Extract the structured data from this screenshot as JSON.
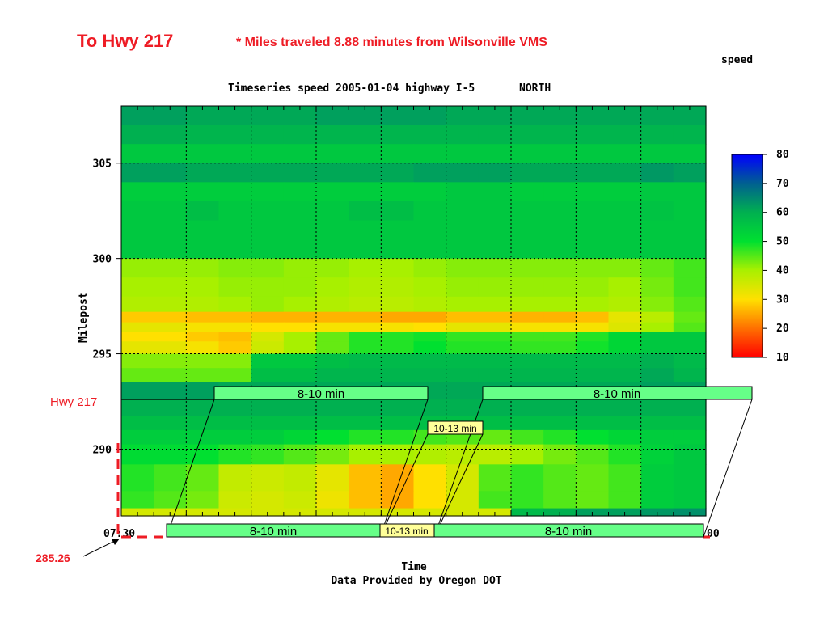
{
  "header": {
    "route_title": "To Hwy 217",
    "subtitle": "* Miles traveled 8.88 minutes from Wilsonville VMS",
    "legend_title": "speed"
  },
  "chart_data": {
    "type": "heatmap",
    "title": "Timeseries speed 2005-01-04 highway I-5       NORTH",
    "xlabel": "Time",
    "ylabel": "Milepost",
    "source": "Data Provided by Oregon DOT",
    "x_tick_labels": [
      "07:30",
      "00"
    ],
    "y_ticks": [
      305,
      300,
      295,
      290
    ],
    "ylim": [
      286.5,
      308
    ],
    "colorbar": {
      "min": 10,
      "max": 80,
      "ticks": [
        80,
        70,
        60,
        50,
        40,
        30,
        20,
        10
      ]
    },
    "n_cols": 18,
    "rows": [
      {
        "mp": 307.5,
        "values": [
          62,
          62,
          61,
          61,
          61,
          61,
          62,
          62,
          62,
          62,
          61,
          61,
          61,
          61,
          61,
          61,
          61,
          61
        ]
      },
      {
        "mp": 306.5,
        "values": [
          60,
          60,
          59,
          59,
          59,
          59,
          59,
          59,
          59,
          59,
          59,
          59,
          59,
          59,
          59,
          59,
          59,
          59
        ]
      },
      {
        "mp": 305.5,
        "values": [
          55,
          55,
          55,
          55,
          55,
          55,
          55,
          55,
          55,
          55,
          55,
          55,
          55,
          55,
          55,
          55,
          55,
          55
        ]
      },
      {
        "mp": 304.5,
        "values": [
          62,
          62,
          61,
          61,
          61,
          61,
          61,
          61,
          61,
          62,
          62,
          62,
          61,
          61,
          61,
          61,
          63,
          62
        ]
      },
      {
        "mp": 303.5,
        "values": [
          54,
          54,
          54,
          54,
          54,
          54,
          54,
          54,
          54,
          54,
          55,
          55,
          54,
          54,
          54,
          54,
          55,
          55
        ]
      },
      {
        "mp": 302.5,
        "values": [
          55,
          55,
          57,
          55,
          55,
          55,
          55,
          57,
          57,
          55,
          55,
          55,
          55,
          55,
          55,
          55,
          56,
          55
        ]
      },
      {
        "mp": 301.5,
        "values": [
          55,
          55,
          55,
          55,
          55,
          55,
          55,
          55,
          55,
          55,
          55,
          55,
          55,
          55,
          55,
          55,
          55,
          55
        ]
      },
      {
        "mp": 300.5,
        "values": [
          55,
          55,
          55,
          55,
          55,
          55,
          55,
          55,
          55,
          55,
          55,
          55,
          55,
          55,
          55,
          55,
          55,
          55
        ]
      },
      {
        "mp": 299.5,
        "values": [
          41,
          41,
          41,
          42,
          42,
          41,
          41,
          40,
          40,
          41,
          42,
          42,
          42,
          42,
          42,
          42,
          44,
          46
        ]
      },
      {
        "mp": 298.5,
        "values": [
          40,
          40,
          40,
          41,
          41,
          41,
          40,
          39,
          39,
          40,
          41,
          41,
          41,
          41,
          41,
          40,
          43,
          46
        ]
      },
      {
        "mp": 297.5,
        "values": [
          39,
          39,
          39,
          40,
          41,
          40,
          39,
          38,
          38,
          39,
          40,
          40,
          40,
          40,
          40,
          39,
          42,
          45
        ]
      },
      {
        "mp": 296.9,
        "values": [
          28,
          28,
          27,
          27,
          26,
          26,
          26,
          26,
          25,
          25,
          27,
          27,
          26,
          26,
          27,
          33,
          38,
          44
        ]
      },
      {
        "mp": 296.4,
        "values": [
          33,
          33,
          31,
          31,
          30,
          30,
          31,
          31,
          31,
          30,
          33,
          33,
          31,
          31,
          31,
          34,
          40,
          45
        ]
      },
      {
        "mp": 295.9,
        "values": [
          30,
          30,
          28,
          27,
          35,
          40,
          44,
          48,
          48,
          49,
          47,
          47,
          46,
          46,
          48,
          52,
          55,
          55
        ]
      },
      {
        "mp": 295.4,
        "values": [
          33,
          33,
          31,
          28,
          36,
          40,
          44,
          48,
          48,
          50,
          48,
          48,
          47,
          47,
          49,
          52,
          55,
          55
        ]
      },
      {
        "mp": 294.6,
        "values": [
          42,
          42,
          42,
          42,
          55,
          55,
          57,
          58,
          58,
          58,
          58,
          58,
          58,
          58,
          58,
          58,
          60,
          58
        ]
      },
      {
        "mp": 293.9,
        "values": [
          44,
          44,
          44,
          44,
          57,
          57,
          59,
          59,
          59,
          59,
          59,
          59,
          59,
          59,
          59,
          59,
          61,
          59
        ]
      },
      {
        "mp": 293.1,
        "values": [
          62,
          62,
          62,
          61,
          61,
          61,
          61,
          61,
          61,
          61,
          61,
          61,
          61,
          61,
          61,
          61,
          62,
          62
        ]
      },
      {
        "mp": 292.1,
        "values": [
          60,
          60,
          60,
          60,
          60,
          60,
          60,
          60,
          60,
          60,
          60,
          60,
          60,
          60,
          60,
          60,
          60,
          60
        ]
      },
      {
        "mp": 291.4,
        "values": [
          57,
          57,
          57,
          57,
          57,
          57,
          57,
          57,
          57,
          57,
          57,
          57,
          57,
          57,
          57,
          57,
          57,
          57
        ]
      },
      {
        "mp": 290.6,
        "values": [
          54,
          54,
          54,
          54,
          54,
          52,
          50,
          48,
          48,
          46,
          45,
          44,
          46,
          48,
          50,
          52,
          54,
          54
        ]
      },
      {
        "mp": 289.9,
        "values": [
          51,
          51,
          50,
          48,
          47,
          45,
          43,
          40,
          40,
          39,
          38,
          38,
          40,
          43,
          45,
          48,
          53,
          55
        ]
      },
      {
        "mp": 288.5,
        "values": [
          48,
          46,
          44,
          37,
          36,
          37,
          33,
          27,
          25,
          30,
          35,
          45,
          47,
          45,
          44,
          46,
          54,
          55
        ]
      },
      {
        "mp": 287.1,
        "values": [
          47,
          45,
          43,
          36,
          35,
          36,
          32,
          27,
          25,
          30,
          35,
          46,
          47,
          45,
          44,
          46,
          54,
          55
        ]
      },
      {
        "mp": 286.7,
        "values": [
          35,
          35,
          35,
          35,
          35,
          35,
          35,
          35,
          35,
          35,
          35,
          35,
          58,
          60,
          62,
          62,
          63,
          64
        ]
      }
    ]
  },
  "annotations": {
    "hwy217_label": "Hwy 217",
    "start_milepost_label": "285.26",
    "travel_boxes_upper": [
      {
        "label": "8-10 min",
        "kind": "green"
      },
      {
        "label": "10-13 min",
        "kind": "yellow"
      },
      {
        "label": "8-10 min",
        "kind": "green"
      }
    ],
    "travel_boxes_lower": [
      {
        "label": "8-10 min",
        "kind": "green"
      },
      {
        "label": "10-13 min",
        "kind": "yellow"
      },
      {
        "label": "8-10 min",
        "kind": "green"
      }
    ],
    "colors": {
      "accent_red": "#ee1c25",
      "box_green": "#66ff88",
      "box_yellow": "#ffff99"
    }
  }
}
